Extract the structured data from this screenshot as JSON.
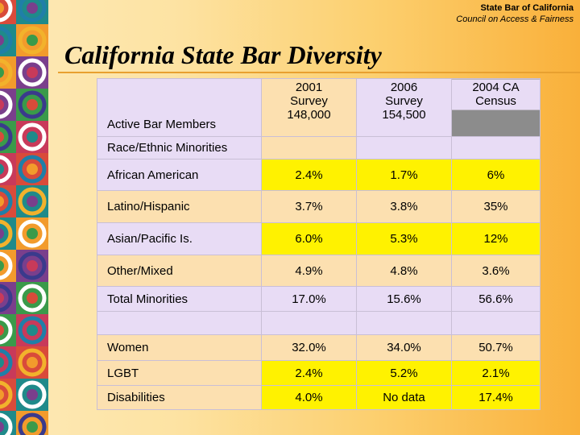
{
  "header": {
    "org": "State Bar of California",
    "council": "Council on Access & Fairness"
  },
  "title": "California State Bar Diversity",
  "table": {
    "corner_label": "Active Bar Members",
    "columns": [
      {
        "lines": [
          "2001",
          "Survey",
          "148,000"
        ]
      },
      {
        "lines": [
          "2006",
          "Survey",
          "154,500"
        ]
      },
      {
        "lines": [
          "2004 CA",
          "Census"
        ]
      }
    ],
    "section_label": "Race/Ethnic Minorities",
    "rows": [
      {
        "label": "African American",
        "values": [
          "2.4%",
          "1.7%",
          "6%"
        ]
      },
      {
        "label": "Latino/Hispanic",
        "values": [
          "3.7%",
          "3.8%",
          "35%"
        ]
      },
      {
        "label": "Asian/Pacific Is.",
        "values": [
          "6.0%",
          "5.3%",
          "12%"
        ]
      },
      {
        "label": "Other/Mixed",
        "values": [
          "4.9%",
          "4.8%",
          "3.6%"
        ]
      },
      {
        "label": "Total Minorities",
        "values": [
          "17.0%",
          "15.6%",
          "56.6%"
        ]
      }
    ],
    "rows2": [
      {
        "label": "Women",
        "values": [
          "32.0%",
          "34.0%",
          "50.7%"
        ]
      },
      {
        "label": "LGBT",
        "values": [
          "2.4%",
          "5.2%",
          "2.1%"
        ]
      },
      {
        "label": "Disabilities",
        "values": [
          "4.0%",
          "No data",
          "17.4%"
        ]
      }
    ]
  },
  "colors": {
    "lavender": "#e8dcf5",
    "yellow": "#fff200",
    "peach": "#fce0b0",
    "gray": "#8c8c8c"
  }
}
